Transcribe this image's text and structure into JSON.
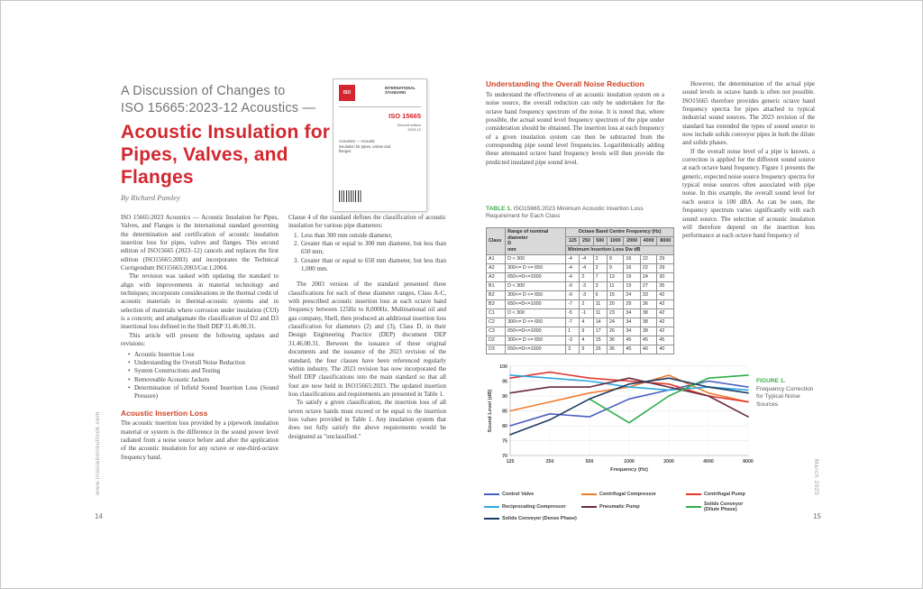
{
  "colors": {
    "title_red": "#d4262e",
    "heading_red": "#cf4727",
    "caption_green": "#3fae49"
  },
  "meta": {
    "left_margin_text": "www.insulationoutlook.com",
    "right_margin_text": "March 2025",
    "left_page_number": "14",
    "right_page_number": "15"
  },
  "header": {
    "kicker_line1": "A Discussion of Changes to",
    "kicker_line2": "ISO 15665:2023-12 Acoustics —",
    "title": "Acoustic Insulation for Pipes, Valves, and Flanges",
    "byline": "By Richard Pamley"
  },
  "cover": {
    "logo": "ISO",
    "label": "INTERNATIONAL\nSTANDARD",
    "doc": "ISO 15665",
    "edition": "Second edition\n2023-12",
    "title": "Acoustics — Acoustic insulation for pipes, valves and flanges"
  },
  "col1": {
    "p1": "ISO 15665:2023 Acoustics — Acoustic Insulation for Pipes, Valves, and Flanges is the international standard governing the determination and certification of acoustic insulation insertion loss for pipes, valves and flanges. This second edition of ISO15665 (2023–12) cancels and replaces the first edition (ISO15665:2003) and incorporates the Technical Corrigendum ISO15665:2003/Cor.1:2004.",
    "p2": "The revision was tasked with updating the standard to align with improvements in material technology and techniques; incorporate considerations in the thermal credit of acoustic materials in thermal-acoustic systems and in selection of materials where corrosion under insulation (CUI) is a concern; and amalgamate the classification of D2 and D3 insertional loss defined in the Shell DEP 31.46.00.31.",
    "p3": "This article will present the following updates and revisions:",
    "bullets": [
      "Acoustic Insertion Loss",
      "Understanding the Overall Noise Reduction",
      "System Constructions and Testing",
      "Removeable Acoustic Jackets",
      "Determination of Infield Sound Insertion Loss (Sound Pressure)"
    ],
    "heading": "Acoustic Insertion Loss",
    "p4": "The acoustic insertion loss provided by a pipework insulation material or system is the difference in the sound power level radiated from a noise source before and after the application of the acoustic insulation for any octave or one-third-octave frequency band."
  },
  "col2": {
    "p1": "Clause 4 of the standard defines the classification of acoustic insulation for various pipe diameters:",
    "list": [
      "Less than 300 mm outside diameter,",
      "Greater than or equal to 300 mm diameter, but less than 650 mm;",
      "Greater than or equal to 650 mm diameter, but less than 1,000 mm."
    ],
    "p2": "The 2003 version of the standard presented three classifications for each of these diameter ranges, Class A-C, with prescribed acoustic insertion loss at each octave band frequency between 125Hz to 8,000Hz. Multinational oil and gas company, Shell, then produced an additional insertion loss classification for diameters (2) and (3), Class D, in their Design Engineering Practice (DEP) document DEP 31.46.00.31. Between the issuance of these original documents and the issuance of the 2023 revision of the standard, the four classes have been referenced regularly within industry. The 2023 revision has now incorporated the Shell DEP classifications into the main standard so that all four are now held in ISO15665:2023. The updated insertion loss classifications and requirements are presented in Table 1.",
    "p3": "To satisfy a given classification, the insertion loss of all seven octave bands must exceed or be equal to the insertion loss values provided in Table 1. Any insulation system that does not fully satisfy the above requirements would be designated as \"unclassified.\""
  },
  "col3": {
    "heading": "Understanding the Overall Noise Reduction",
    "p1": "To understand the effectiveness of an acoustic insulation system on a noise source, the overall reduction can only be undertaken for the octave band frequency spectrum of the noise. It is noted that, where possible, the actual sound level frequency spectrum of the pipe under consideration should be obtained. The insertion loss at each frequency of a given insulation system can then be subtracted from the corresponding pipe sound level frequencies. Logarithmically adding these attenuated octave band frequency levels will then provide the predicted insulated pipe sound level."
  },
  "col4": {
    "p1": "However, the determination of the actual pipe sound levels in octave bands is often not possible. ISO15665 therefore provides generic octave band frequency spectra for pipes attached to typical industrial sound sources. The 2023 revision of the standard has extended the types of sound source to now include solids conveyor pipes in both the dilute and solids phases.",
    "p2": "If the overall noise level of a pipe is known, a correction is applied for the different sound source at each octave band frequency. Figure 1 presents the generic, expected noise source frequency spectra for typical noise sources often associated with pipe noise. In this example, the overall sound level for each source is 100 dBA. As can be seen, the frequency spectrum varies significantly with each sound source. The selection of acoustic insulation will therefore depend on the insertion loss performance at each octave band frequency of",
    "p2_indent": true
  },
  "table": {
    "caption_label": "TABLE 1.",
    "caption_text": "ISO15665:2023 Minimum Acoustic Insertion Loss Requirement for Each Class",
    "col_class": "Class",
    "col_range": "Range of nominal diameter\nD\nmm",
    "freq_header": "Octave Band Centre Frequency (Hz)",
    "freqs": [
      "125",
      "250",
      "500",
      "1000",
      "2000",
      "4000",
      "8000"
    ],
    "subheader": "Minimum Insertion Loss Dw dB",
    "rows": [
      {
        "class": "A1",
        "range": "D < 300",
        "values": [
          -4,
          -4,
          2,
          9,
          16,
          22,
          29
        ]
      },
      {
        "class": "A2",
        "range": "300<= D <= 650",
        "values": [
          -4,
          -4,
          2,
          9,
          16,
          22,
          29
        ]
      },
      {
        "class": "A3",
        "range": "650<=D<=1000",
        "values": [
          -4,
          2,
          7,
          13,
          19,
          24,
          30
        ]
      },
      {
        "class": "B1",
        "range": "D < 300",
        "values": [
          -9,
          -3,
          3,
          11,
          19,
          27,
          35
        ]
      },
      {
        "class": "B2",
        "range": "300<= D <= 650",
        "values": [
          -9,
          -3,
          6,
          15,
          24,
          33,
          42
        ]
      },
      {
        "class": "B3",
        "range": "650<=D<=1000",
        "values": [
          -7,
          2,
          11,
          20,
          29,
          36,
          42
        ]
      },
      {
        "class": "C1",
        "range": "D < 300",
        "values": [
          -5,
          -1,
          11,
          23,
          34,
          38,
          42
        ]
      },
      {
        "class": "C2",
        "range": "300<= D <= 650",
        "values": [
          -7,
          4,
          14,
          24,
          34,
          38,
          42
        ]
      },
      {
        "class": "C3",
        "range": "650<=D<=1000",
        "values": [
          1,
          9,
          17,
          26,
          34,
          38,
          42
        ]
      },
      {
        "class": "D2",
        "range": "300<= D <= 650",
        "values": [
          -3,
          4,
          15,
          36,
          45,
          45,
          45
        ]
      },
      {
        "class": "D3",
        "range": "650<=D<=1000",
        "values": [
          3,
          9,
          26,
          36,
          45,
          40,
          40
        ]
      }
    ]
  },
  "figure": {
    "label": "FIGURE 1.",
    "caption": "Frequency Correction for Typical Noise Sources"
  },
  "chart_data": {
    "type": "line",
    "title": "",
    "xlabel": "Frequency (Hz)",
    "ylabel": "Sound Level (dB)",
    "ylim": [
      70,
      100
    ],
    "yticks": [
      70,
      75,
      80,
      85,
      90,
      95,
      100
    ],
    "categories": [
      "125",
      "250",
      "500",
      "1000",
      "2000",
      "4000",
      "8000"
    ],
    "grid": true,
    "legend_position": "bottom",
    "series": [
      {
        "name": "Control Valve",
        "color": "#4a5fc1",
        "values": [
          80,
          84,
          83,
          89,
          92,
          95,
          93
        ]
      },
      {
        "name": "Centrifugal Compressor",
        "color": "#ee7d30",
        "values": [
          85,
          88,
          91,
          93,
          97,
          91,
          88
        ]
      },
      {
        "name": "Centrifugal Pump",
        "color": "#e2382e",
        "values": [
          96,
          98,
          96,
          95,
          94,
          90,
          88
        ]
      },
      {
        "name": "Reciprocating Compressor",
        "color": "#2ba9e0",
        "values": [
          97,
          96,
          95,
          93,
          92,
          93,
          92
        ]
      },
      {
        "name": "Pneumatic Pump",
        "color": "#6b2a3e",
        "values": [
          91,
          93,
          93,
          96,
          93,
          90,
          83
        ]
      },
      {
        "name": "Solids Conveyor (Dilute Phase)",
        "color": "#2fae4a",
        "values": [
          null,
          null,
          89,
          81,
          90,
          96,
          97
        ]
      },
      {
        "name": "Solids Conveyor (Dense Phase)",
        "color": "#1f3a63",
        "values": [
          77,
          82,
          89,
          94,
          96,
          93,
          91
        ]
      }
    ]
  }
}
